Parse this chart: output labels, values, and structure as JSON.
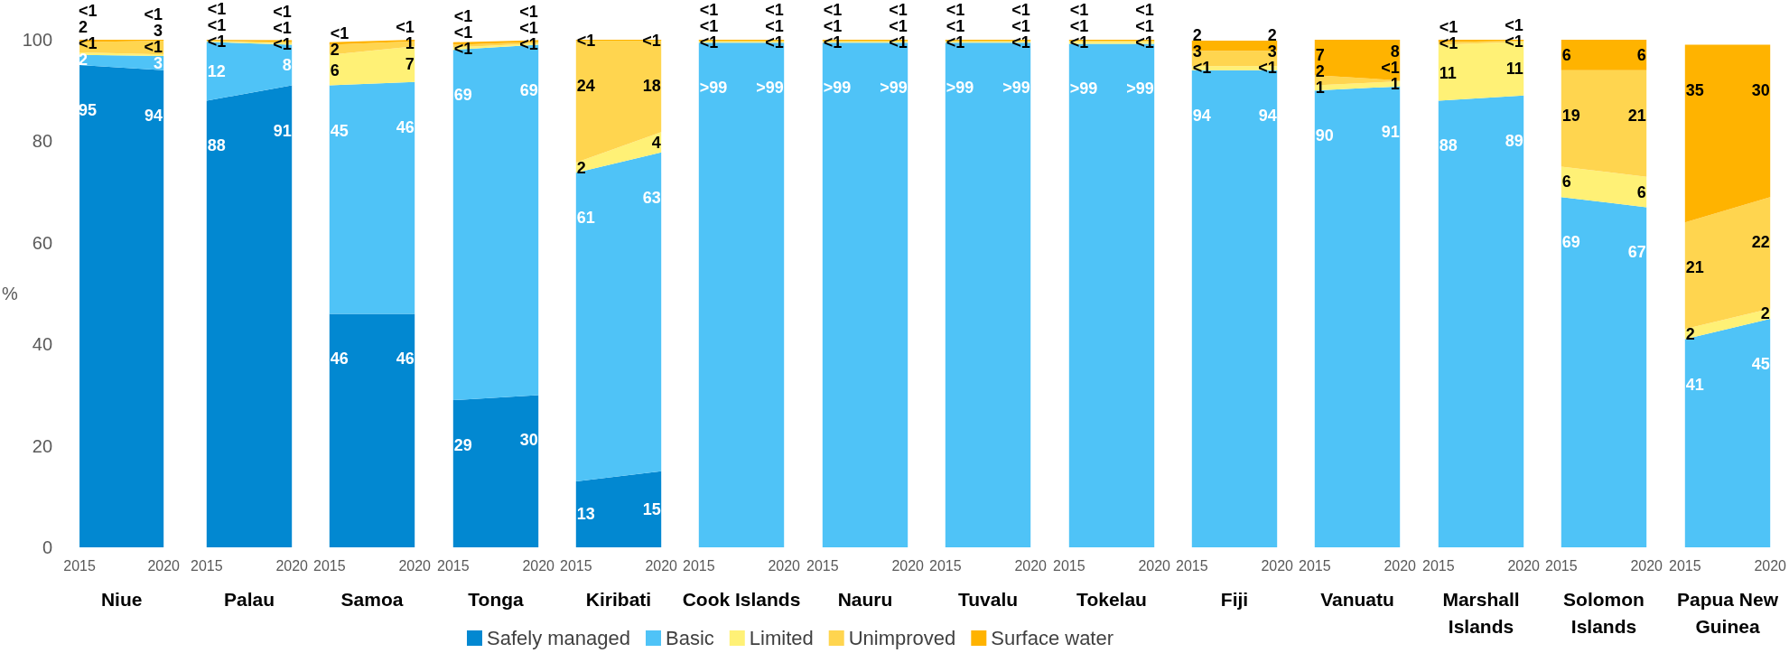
{
  "chart_data": [
    {
      "type": "area",
      "stacked": true,
      "xlabel": "Niue",
      "ylabel": "%",
      "categories": [
        "2015",
        "2020"
      ],
      "ylim": [
        0,
        100
      ],
      "yticks": [
        0,
        20,
        40,
        60,
        80,
        100
      ],
      "legend": "bottom",
      "series": [
        {
          "name": "Safely managed",
          "color": "#0288d1",
          "values": [
            95,
            94
          ],
          "value_labels": [
            "95",
            "94"
          ]
        },
        {
          "name": "Basic",
          "color": "#4fc3f7",
          "values": [
            2,
            2.8
          ],
          "value_labels": [
            "2",
            "3"
          ]
        },
        {
          "name": "Limited",
          "color": "#fff176",
          "values": [
            0.5,
            0.3
          ],
          "value_labels": [
            "<1",
            "<1"
          ]
        },
        {
          "name": "Unimproved",
          "color": "#ffd54f",
          "values": [
            2,
            2.7
          ],
          "value_labels": [
            "2",
            "3"
          ]
        },
        {
          "name": "Surface water",
          "color": "#ffb300",
          "values": [
            0.5,
            0.2
          ],
          "value_labels": [
            "<1",
            "<1"
          ]
        }
      ]
    },
    {
      "type": "area",
      "stacked": true,
      "xlabel": "Palau",
      "categories": [
        "2015",
        "2020"
      ],
      "ylim": [
        0,
        100
      ],
      "tick_labels": "x",
      "series": [
        {
          "color": "#0288d1",
          "values": [
            88,
            91
          ],
          "value_labels": [
            "88",
            "91"
          ]
        },
        {
          "color": "#4fc3f7",
          "values": [
            11.6,
            8
          ],
          "value_labels": [
            "12",
            "8"
          ]
        },
        {
          "color": "#fff176",
          "values": [
            0.1,
            0.3
          ],
          "value_labels": [
            "<1",
            "<1"
          ]
        },
        {
          "color": "#ffd54f",
          "values": [
            0.1,
            0.3
          ],
          "value_labels": [
            "<1",
            "<1"
          ]
        },
        {
          "color": "#ffb300",
          "values": [
            0.2,
            0.3
          ],
          "value_labels": [
            "<1",
            "<1"
          ]
        }
      ]
    },
    {
      "type": "area",
      "stacked": true,
      "xlabel": "Samoa",
      "categories": [
        "2015",
        "2020"
      ],
      "ylim": [
        0,
        100
      ],
      "tick_labels": "x",
      "series": [
        {
          "color": "#0288d1",
          "values": [
            46,
            46
          ],
          "value_labels": [
            "46",
            "46"
          ]
        },
        {
          "color": "#4fc3f7",
          "values": [
            45,
            45.7
          ],
          "value_labels": [
            "45",
            "46"
          ]
        },
        {
          "color": "#fff176",
          "values": [
            6,
            7
          ],
          "value_labels": [
            "6",
            "7"
          ]
        },
        {
          "color": "#ffd54f",
          "values": [
            2,
            1
          ],
          "value_labels": [
            "2",
            "1"
          ]
        },
        {
          "color": "#ffb300",
          "values": [
            0.5,
            0.3
          ],
          "value_labels": [
            "<1",
            "<1"
          ]
        }
      ]
    },
    {
      "type": "area",
      "stacked": true,
      "xlabel": "Tonga",
      "categories": [
        "2015",
        "2020"
      ],
      "ylim": [
        0,
        100
      ],
      "tick_labels": "x",
      "series": [
        {
          "color": "#0288d1",
          "values": [
            29,
            30
          ],
          "value_labels": [
            "29",
            "30"
          ]
        },
        {
          "color": "#4fc3f7",
          "values": [
            69,
            69
          ],
          "value_labels": [
            "69",
            "69"
          ]
        },
        {
          "color": "#fff176",
          "values": [
            0.5,
            0.3
          ],
          "value_labels": [
            "<1",
            "<1"
          ]
        },
        {
          "color": "#ffd54f",
          "values": [
            0.5,
            0.3
          ],
          "value_labels": [
            "<1",
            "<1"
          ]
        },
        {
          "color": "#ffb300",
          "values": [
            0.5,
            0.3
          ],
          "value_labels": [
            "<1",
            "<1"
          ]
        }
      ]
    },
    {
      "type": "area",
      "stacked": true,
      "xlabel": "Kiribati",
      "categories": [
        "2015",
        "2020"
      ],
      "ylim": [
        0,
        100
      ],
      "tick_labels": "x",
      "series": [
        {
          "color": "#0288d1",
          "values": [
            13,
            15
          ],
          "value_labels": [
            "13",
            "15"
          ]
        },
        {
          "color": "#4fc3f7",
          "values": [
            60.8,
            62.8
          ],
          "value_labels": [
            "61",
            "63"
          ]
        },
        {
          "color": "#fff176",
          "values": [
            2,
            4
          ],
          "value_labels": [
            "2",
            "4"
          ]
        },
        {
          "color": "#ffd54f",
          "values": [
            24,
            18
          ],
          "value_labels": [
            "24",
            "18"
          ]
        },
        {
          "color": "#ffb300",
          "values": [
            0.2,
            0.2
          ],
          "value_labels": [
            "<1",
            "<1"
          ]
        }
      ]
    },
    {
      "type": "area",
      "stacked": true,
      "xlabel": "Cook Islands",
      "categories": [
        "2015",
        "2020"
      ],
      "ylim": [
        0,
        100
      ],
      "tick_labels": "x",
      "series": [
        {
          "color": "#4fc3f7",
          "values": [
            99.4,
            99.4
          ],
          "value_labels": [
            ">99",
            ">99"
          ]
        },
        {
          "color": "#fff176",
          "values": [
            0.2,
            0.2
          ],
          "value_labels": [
            "<1",
            "<1"
          ]
        },
        {
          "color": "#ffd54f",
          "values": [
            0.2,
            0.2
          ],
          "value_labels": [
            "<1",
            "<1"
          ]
        },
        {
          "color": "#ffb300",
          "values": [
            0.2,
            0.2
          ],
          "value_labels": [
            "<1",
            "<1"
          ]
        }
      ]
    },
    {
      "type": "area",
      "stacked": true,
      "xlabel": "Nauru",
      "categories": [
        "2015",
        "2020"
      ],
      "ylim": [
        0,
        100
      ],
      "tick_labels": "x",
      "series": [
        {
          "color": "#4fc3f7",
          "values": [
            99.4,
            99.4
          ],
          "value_labels": [
            ">99",
            ">99"
          ]
        },
        {
          "color": "#fff176",
          "values": [
            0.2,
            0.2
          ],
          "value_labels": [
            "<1",
            "<1"
          ]
        },
        {
          "color": "#ffd54f",
          "values": [
            0.2,
            0.2
          ],
          "value_labels": [
            "<1",
            "<1"
          ]
        },
        {
          "color": "#ffb300",
          "values": [
            0.2,
            0.2
          ],
          "value_labels": [
            "<1",
            "<1"
          ]
        }
      ]
    },
    {
      "type": "area",
      "stacked": true,
      "xlabel": "Tuvalu",
      "categories": [
        "2015",
        "2020"
      ],
      "ylim": [
        0,
        100
      ],
      "tick_labels": "x",
      "series": [
        {
          "color": "#4fc3f7",
          "values": [
            99.4,
            99.4
          ],
          "value_labels": [
            ">99",
            ">99"
          ]
        },
        {
          "color": "#fff176",
          "values": [
            0.2,
            0.2
          ],
          "value_labels": [
            "<1",
            "<1"
          ]
        },
        {
          "color": "#ffd54f",
          "values": [
            0.2,
            0.2
          ],
          "value_labels": [
            "<1",
            "<1"
          ]
        },
        {
          "color": "#ffb300",
          "values": [
            0.2,
            0.2
          ],
          "value_labels": [
            "<1",
            "<1"
          ]
        }
      ]
    },
    {
      "type": "area",
      "stacked": true,
      "xlabel": "Tokelau",
      "categories": [
        "2015",
        "2020"
      ],
      "ylim": [
        0,
        100
      ],
      "tick_labels": "x",
      "series": [
        {
          "color": "#4fc3f7",
          "values": [
            99.2,
            99.2
          ],
          "value_labels": [
            ">99",
            ">99"
          ]
        },
        {
          "color": "#fff176",
          "values": [
            0.4,
            0.4
          ],
          "value_labels": [
            "<1",
            "<1"
          ]
        },
        {
          "color": "#ffd54f",
          "values": [
            0.2,
            0.2
          ],
          "value_labels": [
            "<1",
            "<1"
          ]
        },
        {
          "color": "#ffb300",
          "values": [
            0.2,
            0.2
          ],
          "value_labels": [
            "<1",
            "<1"
          ]
        }
      ]
    },
    {
      "type": "area",
      "stacked": true,
      "xlabel": "Fiji",
      "categories": [
        "2015",
        "2020"
      ],
      "ylim": [
        0,
        100
      ],
      "tick_labels": "x",
      "series": [
        {
          "color": "#4fc3f7",
          "values": [
            94,
            94
          ],
          "value_labels": [
            "94",
            "94"
          ]
        },
        {
          "color": "#fff176",
          "values": [
            0.8,
            0.8
          ],
          "value_labels": [
            "<1",
            "<1"
          ]
        },
        {
          "color": "#ffd54f",
          "values": [
            3,
            3
          ],
          "value_labels": [
            "3",
            "3"
          ]
        },
        {
          "color": "#ffb300",
          "values": [
            2,
            2
          ],
          "value_labels": [
            "2",
            "2"
          ]
        }
      ]
    },
    {
      "type": "area",
      "stacked": true,
      "xlabel": "Vanuatu",
      "categories": [
        "2015",
        "2020"
      ],
      "ylim": [
        0,
        100
      ],
      "tick_labels": "x",
      "series": [
        {
          "color": "#4fc3f7",
          "values": [
            90,
            90.8
          ],
          "value_labels": [
            "90",
            "91"
          ]
        },
        {
          "color": "#fff176",
          "values": [
            1,
            1
          ],
          "value_labels": [
            "1",
            "1"
          ]
        },
        {
          "color": "#ffd54f",
          "values": [
            2,
            0.2
          ],
          "value_labels": [
            "2",
            "<1"
          ]
        },
        {
          "color": "#ffb300",
          "values": [
            7,
            8
          ],
          "value_labels": [
            "7",
            "8"
          ]
        }
      ]
    },
    {
      "type": "area",
      "stacked": true,
      "xlabel": "Marshall Islands",
      "categories": [
        "2015",
        "2020"
      ],
      "ylim": [
        0,
        100
      ],
      "tick_labels": "x",
      "series": [
        {
          "color": "#4fc3f7",
          "values": [
            88,
            89
          ],
          "value_labels": [
            "88",
            "89"
          ]
        },
        {
          "color": "#fff176",
          "values": [
            11,
            10.6
          ],
          "value_labels": [
            "11",
            "11"
          ]
        },
        {
          "color": "#ffd54f",
          "values": [
            0.5,
            0.2
          ],
          "value_labels": [
            "<1",
            "<1"
          ]
        },
        {
          "color": "#ffb300",
          "values": [
            0.5,
            0.2
          ],
          "value_labels": [
            "<1",
            "<1"
          ]
        }
      ]
    },
    {
      "type": "area",
      "stacked": true,
      "xlabel": "Solomon Islands",
      "categories": [
        "2015",
        "2020"
      ],
      "ylim": [
        0,
        100
      ],
      "tick_labels": "x",
      "series": [
        {
          "color": "#4fc3f7",
          "values": [
            69,
            67
          ],
          "value_labels": [
            "69",
            "67"
          ]
        },
        {
          "color": "#fff176",
          "values": [
            6,
            6
          ],
          "value_labels": [
            "6",
            "6"
          ]
        },
        {
          "color": "#ffd54f",
          "values": [
            19,
            21
          ],
          "value_labels": [
            "19",
            "21"
          ]
        },
        {
          "color": "#ffb300",
          "values": [
            6,
            6
          ],
          "value_labels": [
            "6",
            "6"
          ]
        }
      ]
    },
    {
      "type": "area",
      "stacked": true,
      "xlabel": "Papua New Guinea",
      "categories": [
        "2015",
        "2020"
      ],
      "ylim": [
        0,
        100
      ],
      "tick_labels": "x",
      "series": [
        {
          "color": "#4fc3f7",
          "values": [
            41,
            45
          ],
          "value_labels": [
            "41",
            "45"
          ]
        },
        {
          "color": "#fff176",
          "values": [
            2,
            2
          ],
          "value_labels": [
            "2",
            "2"
          ]
        },
        {
          "color": "#ffd54f",
          "values": [
            21,
            22
          ],
          "value_labels": [
            "21",
            "22"
          ]
        },
        {
          "color": "#ffb300",
          "values": [
            35,
            30
          ],
          "value_labels": [
            "35",
            "30"
          ]
        }
      ]
    }
  ]
}
